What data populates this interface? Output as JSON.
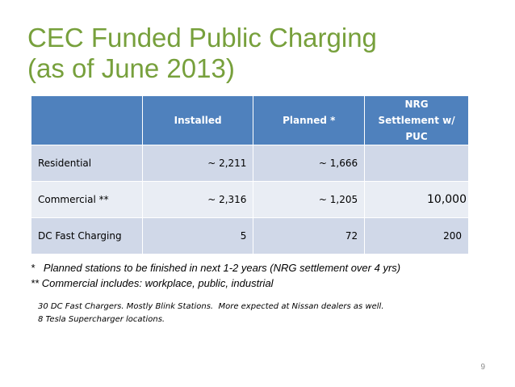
{
  "title": {
    "line1": "CEC Funded Public Charging",
    "line2": "(as of June 2013)"
  },
  "table": {
    "headers": [
      "",
      "Installed",
      "Planned *",
      "NRG Settlement w/ PUC"
    ],
    "rows": [
      {
        "label": "Residential",
        "installed": "~ 2,211",
        "planned": "~ 1,666",
        "nrg": ""
      },
      {
        "label": "Commercial **",
        "installed": "~ 2,316",
        "planned": "~ 1,205",
        "nrg": "10,000"
      },
      {
        "label": "DC Fast Charging",
        "installed": "5",
        "planned": "72",
        "nrg": "200"
      }
    ]
  },
  "footnotes": {
    "f1": "*   Planned stations to be finished in next 1-2 years (NRG settlement over 4 yrs)",
    "f2": "** Commercial includes: workplace, public, industrial"
  },
  "notes": {
    "n1": "30 DC Fast Chargers. Mostly Blink Stations.  More expected at Nissan dealers as well.",
    "n2": "8 Tesla Supercharger locations."
  },
  "page_number": "9",
  "colors": {
    "title": "#77a03c",
    "header_bg": "#4f81bd",
    "row_dark": "#d0d8e8",
    "row_light": "#e9edf4"
  }
}
